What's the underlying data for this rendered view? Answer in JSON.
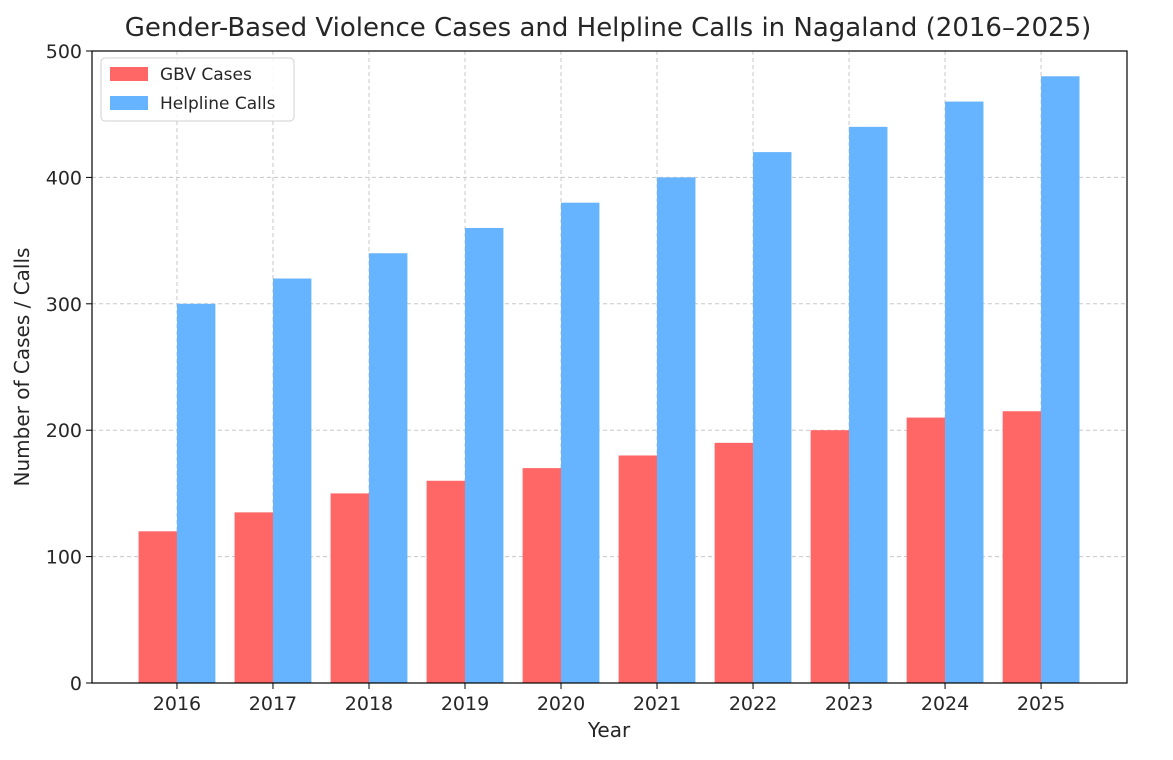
{
  "chart_data": {
    "type": "bar",
    "title": "Gender-Based Violence Cases and Helpline Calls in Nagaland (2016–2025)",
    "xlabel": "Year",
    "ylabel": "Number of Cases / Calls",
    "categories": [
      "2016",
      "2017",
      "2018",
      "2019",
      "2020",
      "2021",
      "2022",
      "2023",
      "2024",
      "2025"
    ],
    "series": [
      {
        "name": "GBV Cases",
        "color": "#ff6666",
        "values": [
          120,
          135,
          150,
          160,
          170,
          180,
          190,
          200,
          210,
          215
        ]
      },
      {
        "name": "Helpline Calls",
        "color": "#66b3ff",
        "values": [
          300,
          320,
          340,
          360,
          380,
          400,
          420,
          440,
          460,
          480
        ]
      }
    ],
    "ylim": [
      0,
      500
    ],
    "yticks": [
      0,
      100,
      200,
      300,
      400,
      500
    ],
    "grid": true,
    "legend": "top-left"
  }
}
